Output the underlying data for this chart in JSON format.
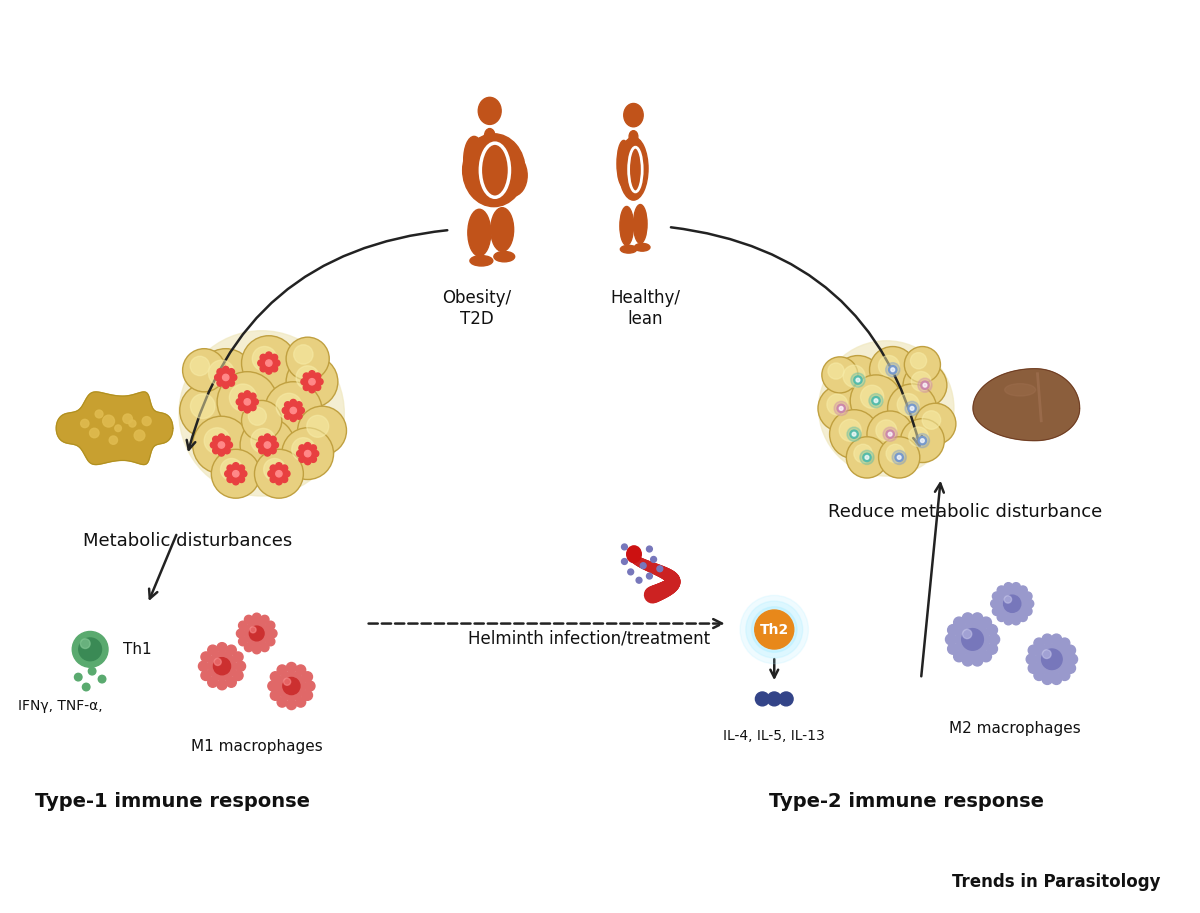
{
  "bg_color": "#ffffff",
  "person_color": "#C1531A",
  "arrow_color": "#222222",
  "title_journal": "Trends in Parasitology",
  "label_obesity": "Obesity/\nT2D",
  "label_healthy": "Healthy/\nlean",
  "label_metabolic_dist": "Metabolic disturbances",
  "label_reduce_metabolic": "Reduce metabolic disturbance",
  "label_helminth": "Helminth infection/treatment",
  "label_type1": "Type-1 immune response",
  "label_type2": "Type-2 immune response",
  "label_th1": "Th1",
  "label_th2": "Th2",
  "label_m1": "M1 macrophages",
  "label_m2": "M2 macrophages",
  "label_cytokines1": "IFNγ, TNF-α,",
  "label_cytokines2": "IL-4, IL-5, IL-13",
  "th1_color": "#5aaa6f",
  "th2_color": "#E8881A",
  "m1_color": "#e06868",
  "m2_color": "#9999cc",
  "fat_color": "#e8d080",
  "fat_edge": "#c0a040",
  "fat_bg": "#f0e8c0",
  "infl_red": "#e84040",
  "healthy_teal": "#55bbaa",
  "healthy_blue": "#7799cc",
  "healthy_pink": "#cc88aa",
  "liver_inflamed_main": "#c8a030",
  "liver_inflamed_spot": "#e0bc50",
  "liver_inflamed_dark": "#b09020",
  "liver_healthy": "#8B5E3C",
  "liver_healthy_hilite": "#a07050",
  "helminth_color": "#cc2222",
  "dot_color": "#7777bb",
  "green_dot_color": "#5aaa6f",
  "il_dot_color": "#334488"
}
